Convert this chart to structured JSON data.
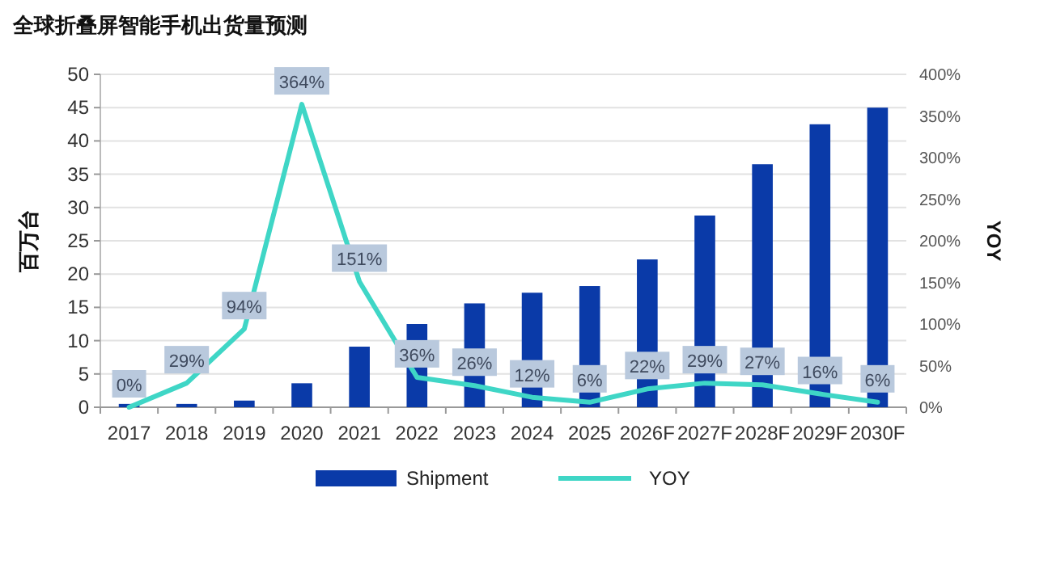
{
  "chart_data": {
    "type": "bar",
    "title": "全球折叠屏智能手机出货量预测",
    "ylabel": "百万台",
    "y2label": "YOY",
    "categories": [
      "2017",
      "2018",
      "2019",
      "2020",
      "2021",
      "2022",
      "2023",
      "2024",
      "2025",
      "2026F",
      "2027F",
      "2028F",
      "2029F",
      "2030F"
    ],
    "series": [
      {
        "name": "Shipment",
        "color": "#0a3aa8",
        "values": [
          0.5,
          0.5,
          1.0,
          3.6,
          9.1,
          12.5,
          15.6,
          17.2,
          18.2,
          22.2,
          28.8,
          36.5,
          42.5,
          45.0
        ]
      },
      {
        "name": "YOY",
        "type": "line",
        "axis": "y2",
        "color": "#3fd6c6",
        "values": [
          0,
          29,
          94,
          364,
          151,
          36,
          26,
          12,
          6,
          22,
          29,
          27,
          16,
          6
        ],
        "value_labels": [
          "0%",
          "29%",
          "94%",
          "364%",
          "151%",
          "36%",
          "26%",
          "12%",
          "6%",
          "22%",
          "29%",
          "27%",
          "16%",
          "6%"
        ]
      }
    ],
    "ylim": [
      0,
      50
    ],
    "yticks": [
      0,
      5,
      10,
      15,
      20,
      25,
      30,
      35,
      40,
      45,
      50
    ],
    "y2lim": [
      0,
      400
    ],
    "y2ticks": [
      {
        "value": 0,
        "label": "0%"
      },
      {
        "value": 50,
        "label": "50%"
      },
      {
        "value": 100,
        "label": "100%"
      },
      {
        "value": 150,
        "label": "150%"
      },
      {
        "value": 200,
        "label": "200%"
      },
      {
        "value": 250,
        "label": "250%"
      },
      {
        "value": 300,
        "label": "300%"
      },
      {
        "value": 350,
        "label": "350%"
      },
      {
        "value": 400,
        "label": "400%"
      }
    ],
    "grid": "y",
    "legend": "bottom",
    "marker": "none",
    "line_style": "solid"
  }
}
